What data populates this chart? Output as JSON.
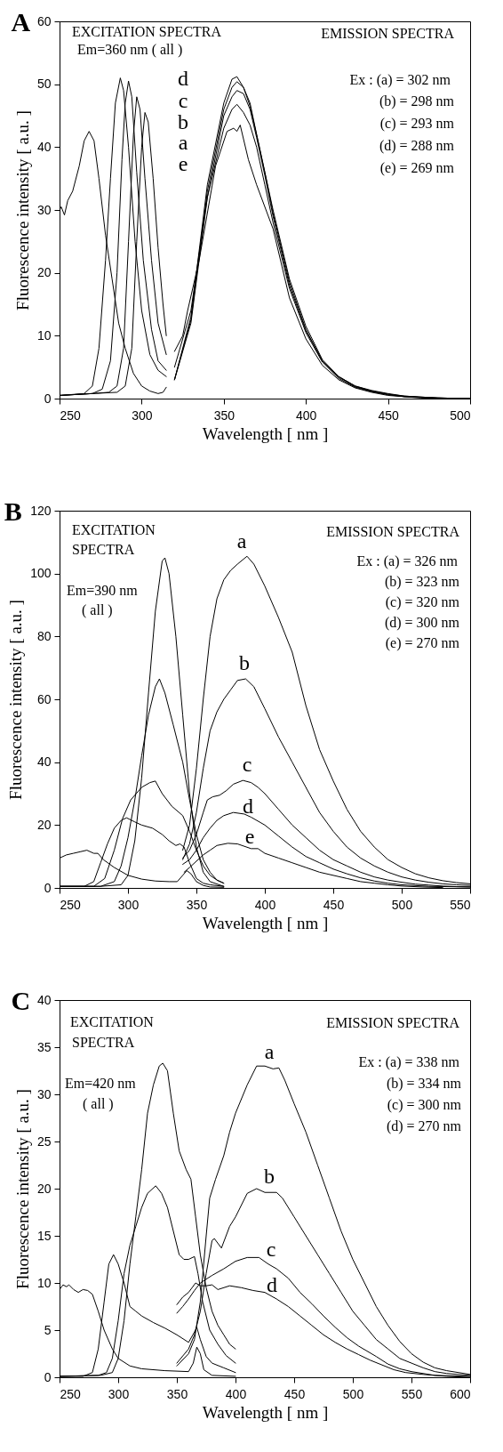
{
  "chart_data": [
    {
      "type": "line",
      "title": "A",
      "xlabel": "Wavelength [ nm ]",
      "ylabel": "Fluorescence intensity [ a.u. ]",
      "xlim": [
        250,
        500
      ],
      "ylim": [
        0,
        60
      ],
      "xticks": [
        250,
        300,
        350,
        400,
        450,
        500
      ],
      "yticks": [
        0,
        10,
        20,
        30,
        40,
        50,
        60
      ],
      "grid": false,
      "legend": false,
      "marker": "none",
      "line_style": "solid",
      "annotations": [
        "EXCITATION SPECTRA",
        "Em=360 nm ( all )",
        "EMISSION SPECTRA",
        "Ex : (a) = 302 nm",
        "(b) = 298 nm",
        "(c) = 293 nm",
        "(d) = 288 nm",
        "(e) = 269 nm",
        "d",
        "c",
        "b",
        "a",
        "e"
      ],
      "series": [
        {
          "color": "#000000",
          "x": [
            250,
            270,
            285,
            290,
            294,
            297,
            300,
            302,
            304,
            307,
            310,
            313,
            315
          ],
          "values": [
            0.5,
            0.8,
            1,
            2,
            8,
            25,
            40,
            45.5,
            44,
            35,
            24,
            15,
            10
          ]
        },
        {
          "color": "#000000",
          "x": [
            250,
            270,
            280,
            285,
            289,
            292,
            295,
            297,
            299,
            302,
            306,
            310,
            315
          ],
          "values": [
            0.5,
            0.8,
            1,
            2,
            8,
            25,
            42,
            48,
            46,
            35,
            22,
            12,
            7
          ]
        },
        {
          "color": "#000000",
          "x": [
            250,
            270,
            276,
            281,
            285,
            288,
            290,
            292,
            294,
            297,
            301,
            306,
            310,
            315
          ],
          "values": [
            0.5,
            0.8,
            1.5,
            6,
            20,
            38,
            47,
            50.5,
            48,
            36,
            22,
            11,
            6,
            4.5
          ]
        },
        {
          "color": "#000000",
          "x": [
            250,
            265,
            270,
            274,
            278,
            281,
            284,
            287,
            289,
            292,
            296,
            300,
            305,
            310,
            315
          ],
          "values": [
            0.5,
            0.8,
            2,
            8,
            22,
            35,
            47,
            51,
            49,
            40,
            25,
            14,
            7,
            4.5,
            3.5
          ]
        },
        {
          "color": "#000000",
          "x": [
            250,
            251,
            253,
            255,
            258,
            262,
            265,
            268,
            271,
            274,
            278,
            282,
            286,
            290,
            295,
            300,
            305,
            310,
            313,
            315
          ],
          "values": [
            30,
            30.5,
            29.2,
            31.5,
            33,
            37,
            41,
            42.5,
            41,
            35,
            26,
            19,
            12,
            8,
            4,
            2,
            1.2,
            0.8,
            1,
            1.8
          ]
        },
        {
          "color": "#000000",
          "x": [
            320,
            330,
            340,
            350,
            355,
            358,
            362,
            366,
            370,
            375,
            380,
            390,
            400,
            410,
            420,
            430,
            440,
            450,
            460,
            480,
            500
          ],
          "values": [
            3,
            13,
            34,
            47,
            50.8,
            51.2,
            49.5,
            46.5,
            42,
            36,
            30,
            19,
            11.5,
            6.2,
            3.5,
            2,
            1.3,
            0.8,
            0.4,
            0.1,
            0
          ]
        },
        {
          "color": "#000000",
          "x": [
            320,
            330,
            340,
            350,
            355,
            358,
            362,
            366,
            370,
            375,
            380,
            390,
            400,
            410,
            420,
            430,
            440,
            450,
            460,
            480,
            500
          ],
          "values": [
            3,
            12.5,
            33,
            46,
            49.5,
            50.4,
            49.5,
            47,
            42,
            36,
            29.5,
            18.5,
            11,
            6,
            3.5,
            2,
            1.2,
            0.7,
            0.4,
            0.1,
            0
          ]
        },
        {
          "color": "#000000",
          "x": [
            320,
            330,
            340,
            350,
            355,
            358,
            362,
            366,
            370,
            375,
            380,
            390,
            400,
            410,
            420,
            430,
            440,
            450,
            460,
            480,
            500
          ],
          "values": [
            3,
            12,
            32,
            45,
            48,
            49,
            48.5,
            46,
            41.5,
            35.5,
            29,
            18,
            10.8,
            6,
            3.4,
            1.9,
            1.2,
            0.7,
            0.3,
            0.1,
            0
          ]
        },
        {
          "color": "#000000",
          "x": [
            320,
            330,
            340,
            350,
            355,
            358,
            362,
            366,
            370,
            375,
            380,
            390,
            400,
            410,
            420,
            430,
            440,
            450,
            460,
            480,
            500
          ],
          "values": [
            5,
            14,
            32,
            43,
            46,
            46.8,
            45.5,
            43.5,
            40,
            34,
            28,
            17.5,
            10.5,
            5.8,
            3.2,
            1.8,
            1.1,
            0.6,
            0.3,
            0.1,
            0
          ]
        },
        {
          "color": "#000000",
          "x": [
            320,
            325,
            328,
            335,
            345,
            352,
            356,
            358,
            360,
            365,
            370,
            380,
            390,
            400,
            410,
            420,
            430,
            440,
            450,
            470,
            500
          ],
          "values": [
            7.5,
            10,
            14,
            22,
            37,
            42.5,
            43,
            42.5,
            43.5,
            38,
            34,
            27,
            16,
            9.5,
            5.3,
            3,
            1.7,
            1,
            0.5,
            0.1,
            0
          ]
        }
      ]
    },
    {
      "type": "line",
      "title": "B",
      "xlabel": "Wavelength [ nm ]",
      "ylabel": "Fluorescence intensity [ a.u. ]",
      "xlim": [
        250,
        550
      ],
      "ylim": [
        0,
        120
      ],
      "xticks": [
        250,
        300,
        350,
        400,
        450,
        500,
        550
      ],
      "yticks": [
        0,
        20,
        40,
        60,
        80,
        100,
        120
      ],
      "grid": false,
      "legend": false,
      "marker": "none",
      "line_style": "solid",
      "annotations": [
        "EXCITATION",
        "SPECTRA",
        "Em=390 nm",
        "( all )",
        "EMISSION SPECTRA",
        "Ex : (a) = 326 nm",
        "(b) = 323 nm",
        "(c) = 320 nm",
        "(d) = 300 nm",
        "(e) = 270 nm",
        "a",
        "b",
        "c",
        "d",
        "e"
      ],
      "series": [
        {
          "color": "#000000",
          "x": [
            250,
            280,
            295,
            300,
            305,
            310,
            315,
            320,
            325,
            327,
            330,
            335,
            340,
            345,
            350,
            355,
            360,
            370
          ],
          "values": [
            0.5,
            0.5,
            1,
            4,
            15,
            35,
            62,
            88,
            104,
            105,
            100,
            80,
            55,
            30,
            13,
            5,
            2,
            0.5
          ]
        },
        {
          "color": "#000000",
          "x": [
            250,
            280,
            290,
            295,
            300,
            305,
            310,
            315,
            320,
            323,
            327,
            333,
            340,
            345,
            350,
            355,
            360,
            365,
            370
          ],
          "values": [
            0.5,
            0.5,
            2,
            7,
            16,
            28,
            42,
            55,
            64,
            66.5,
            62,
            52,
            40,
            28,
            17,
            9,
            5,
            2.5,
            1.5
          ]
        },
        {
          "color": "#000000",
          "x": [
            250,
            275,
            283,
            290,
            296,
            302,
            310,
            316,
            320,
            325,
            332,
            340,
            345,
            350,
            355,
            360,
            365,
            370
          ],
          "values": [
            0.5,
            0.5,
            3,
            12,
            22,
            28,
            32,
            33.5,
            34,
            30,
            26,
            23,
            18,
            12,
            7,
            4,
            2.5,
            1.5
          ]
        },
        {
          "color": "#000000",
          "x": [
            250,
            268,
            275,
            280,
            285,
            290,
            295,
            299,
            305,
            310,
            318,
            325,
            330,
            335,
            338,
            341,
            345,
            350,
            355,
            360,
            370
          ],
          "values": [
            0.5,
            0.5,
            2,
            8,
            14,
            19,
            21.5,
            22.3,
            21,
            20,
            19,
            17,
            15,
            13.5,
            14,
            13,
            8,
            3,
            1.5,
            1,
            0.5
          ]
        },
        {
          "color": "#000000",
          "x": [
            250,
            255,
            260,
            265,
            270,
            275,
            278,
            282,
            290,
            300,
            310,
            320,
            330,
            336,
            340,
            343,
            346,
            350,
            355,
            360,
            370
          ],
          "values": [
            9.5,
            10.5,
            11,
            11.5,
            12,
            11,
            11,
            9,
            6.5,
            4,
            2.8,
            2.2,
            2,
            2,
            4,
            5.5,
            4.5,
            2,
            0.8,
            0.3,
            0.2
          ]
        },
        {
          "color": "#000000",
          "x": [
            340,
            345,
            350,
            355,
            360,
            365,
            370,
            375,
            380,
            387,
            392,
            400,
            410,
            420,
            430,
            440,
            450,
            460,
            470,
            480,
            490,
            500,
            510,
            520,
            530,
            540,
            550
          ],
          "values": [
            12,
            20,
            38,
            60,
            80,
            92,
            98,
            101,
            103,
            105.5,
            103,
            96,
            86,
            75,
            58,
            44,
            34,
            25,
            18,
            13,
            9,
            6.5,
            4.5,
            3.2,
            2.3,
            1.7,
            1.3
          ]
        },
        {
          "color": "#000000",
          "x": [
            340,
            345,
            350,
            355,
            360,
            365,
            370,
            375,
            380,
            386,
            392,
            400,
            410,
            420,
            430,
            440,
            450,
            460,
            470,
            480,
            490,
            500,
            510,
            520,
            530,
            540,
            550
          ],
          "values": [
            9,
            14,
            24,
            38,
            50,
            56,
            60,
            63,
            66,
            66.5,
            64,
            57,
            48,
            40,
            32,
            24,
            18,
            13,
            9.5,
            7,
            5,
            3.5,
            2.5,
            1.8,
            1.3,
            1,
            0.8
          ]
        },
        {
          "color": "#000000",
          "x": [
            340,
            345,
            350,
            355,
            358,
            362,
            367,
            372,
            377,
            384,
            390,
            395,
            400,
            410,
            420,
            430,
            440,
            450,
            460,
            470,
            480,
            490,
            500,
            510,
            520,
            530,
            540,
            550
          ],
          "values": [
            9.5,
            12,
            17,
            24,
            28,
            29,
            29.5,
            31,
            33,
            34.2,
            33.5,
            32,
            30,
            25,
            20,
            16,
            12,
            9,
            7,
            5,
            3.5,
            2.5,
            1.8,
            1.2,
            0.9,
            0.6,
            0.4,
            0.3
          ]
        },
        {
          "color": "#000000",
          "x": [
            340,
            345,
            350,
            355,
            360,
            365,
            370,
            377,
            385,
            390,
            400,
            410,
            420,
            430,
            440,
            450,
            460,
            470,
            480,
            490,
            500,
            520,
            550
          ],
          "values": [
            7.5,
            9,
            12,
            16,
            19,
            21.5,
            23,
            24,
            23.5,
            22.5,
            20,
            16.5,
            13,
            10,
            8,
            6,
            4.5,
            3.2,
            2.2,
            1.5,
            1,
            0.5,
            0.3
          ]
        },
        {
          "color": "#000000",
          "x": [
            341,
            345,
            350,
            355,
            360,
            365,
            373,
            380,
            390,
            395,
            400,
            410,
            420,
            430,
            440,
            450,
            460,
            470,
            480,
            490,
            500,
            515,
            530
          ],
          "values": [
            5,
            6.5,
            8.5,
            10.5,
            12,
            13.5,
            14.2,
            14,
            12.5,
            12.5,
            11,
            9.5,
            8,
            6.5,
            5,
            4,
            3,
            2,
            1.5,
            1,
            0.6,
            0.3,
            0.1
          ]
        }
      ]
    },
    {
      "type": "line",
      "title": "C",
      "xlabel": "Wavelength [ nm ]",
      "ylabel": "Fluorescence intensity [ a.u. ]",
      "xlim": [
        250,
        600
      ],
      "ylim": [
        0,
        40
      ],
      "xticks": [
        250,
        300,
        350,
        400,
        450,
        500,
        550,
        600
      ],
      "yticks": [
        0,
        5,
        10,
        15,
        20,
        25,
        30,
        35,
        40
      ],
      "grid": false,
      "legend": false,
      "marker": "none",
      "line_style": "solid",
      "annotations": [
        "EXCITATION",
        "SPECTRA",
        "Em=420 nm",
        "( all )",
        "EMISSION SPECTRA",
        "Ex : (a) = 338 nm",
        "(b) = 334 nm",
        "(c) = 300 nm",
        "(d) = 270 nm",
        "a",
        "b",
        "c",
        "d"
      ],
      "series": [
        {
          "color": "#000000",
          "x": [
            250,
            285,
            295,
            300,
            305,
            310,
            315,
            320,
            325,
            330,
            335,
            338,
            342,
            347,
            352,
            358,
            362,
            366,
            370,
            375,
            380,
            385,
            390,
            395,
            400
          ],
          "values": [
            0.1,
            0.2,
            0.5,
            2,
            6,
            12,
            17,
            22,
            28,
            31,
            33,
            33.3,
            32.5,
            28,
            24,
            22,
            21,
            17,
            13,
            9.5,
            7,
            5.5,
            4.5,
            3.5,
            3
          ]
        },
        {
          "color": "#000000",
          "x": [
            250,
            283,
            290,
            295,
            300,
            305,
            310,
            315,
            320,
            325,
            332,
            337,
            342,
            348,
            352,
            356,
            360,
            365,
            368,
            372,
            378,
            385,
            392,
            400
          ],
          "values": [
            0.1,
            0.2,
            0.5,
            2,
            6,
            11,
            14,
            16,
            18,
            19.5,
            20.3,
            19.5,
            18,
            15,
            13,
            12.5,
            12.5,
            12.8,
            11,
            8,
            5,
            3.5,
            2.3,
            1.5
          ]
        },
        {
          "color": "#000000",
          "x": [
            250,
            270,
            278,
            283,
            288,
            292,
            296,
            300,
            305,
            310,
            315,
            320,
            330,
            340,
            350,
            360,
            365,
            367,
            370,
            375,
            380,
            390,
            400
          ],
          "values": [
            0.1,
            0.1,
            0.5,
            3,
            8,
            12,
            13,
            12,
            10,
            7.5,
            7,
            6.5,
            5.8,
            5.2,
            4.5,
            3.7,
            4.8,
            5.3,
            4,
            2.2,
            1.5,
            1,
            0.5
          ]
        },
        {
          "color": "#000000",
          "x": [
            250,
            253,
            256,
            258,
            262,
            266,
            270,
            274,
            278,
            283,
            288,
            295,
            300,
            310,
            320,
            340,
            360,
            364,
            367,
            370,
            373,
            380,
            400
          ],
          "values": [
            9.3,
            9.8,
            9.6,
            9.8,
            9.3,
            9,
            9.3,
            9.2,
            8.8,
            7,
            5,
            3,
            2,
            1.2,
            0.9,
            0.7,
            0.6,
            1.5,
            3.2,
            2.5,
            0.8,
            0.2,
            0.1
          ]
        },
        {
          "color": "#000000",
          "x": [
            350,
            360,
            365,
            370,
            375,
            378,
            383,
            390,
            395,
            400,
            410,
            418,
            425,
            432,
            437,
            442,
            450,
            460,
            470,
            480,
            490,
            500,
            510,
            520,
            530,
            540,
            550,
            560,
            570,
            580,
            600
          ],
          "values": [
            1.2,
            2.5,
            4,
            8,
            15,
            19,
            21,
            23.5,
            26,
            28,
            31,
            33,
            33,
            32.7,
            32.8,
            31.5,
            29,
            26,
            22.5,
            19,
            15.5,
            12.5,
            10,
            7.5,
            5.5,
            3.8,
            2.5,
            1.6,
            1,
            0.7,
            0.3
          ]
        },
        {
          "color": "#000000",
          "x": [
            350,
            360,
            365,
            370,
            375,
            380,
            382,
            388,
            395,
            400,
            410,
            418,
            425,
            435,
            440,
            450,
            460,
            470,
            480,
            490,
            500,
            510,
            520,
            530,
            540,
            550,
            560,
            570,
            580,
            600
          ],
          "values": [
            1.5,
            3,
            4.5,
            7,
            11,
            14.5,
            14.7,
            13.7,
            16,
            17,
            19.5,
            20,
            19.6,
            19.6,
            19,
            17,
            15,
            13,
            11,
            9,
            7,
            5.5,
            4,
            3,
            2,
            1.5,
            1,
            0.6,
            0.4,
            0.2
          ]
        },
        {
          "color": "#000000",
          "x": [
            350,
            355,
            360,
            365,
            370,
            380,
            390,
            400,
            410,
            420,
            428,
            435,
            445,
            455,
            465,
            475,
            485,
            495,
            505,
            520,
            530,
            540,
            550,
            570,
            600
          ],
          "values": [
            6.8,
            7.5,
            8.3,
            9.2,
            10,
            10.8,
            11.5,
            12.3,
            12.7,
            12.7,
            12,
            11.5,
            10.5,
            9,
            7.8,
            6.5,
            5.3,
            4.2,
            3.3,
            2.2,
            1.4,
            0.9,
            0.6,
            0.2,
            0.1
          ]
        },
        {
          "color": "#000000",
          "x": [
            350,
            355,
            360,
            366,
            370,
            375,
            380,
            385,
            395,
            405,
            415,
            425,
            435,
            445,
            455,
            465,
            475,
            485,
            495,
            505,
            515,
            525,
            535,
            545,
            560,
            580,
            600
          ],
          "values": [
            7.7,
            8.5,
            9,
            10,
            9.7,
            9.7,
            9.8,
            9.3,
            9.7,
            9.5,
            9.2,
            9,
            8.3,
            7.5,
            6.5,
            5.5,
            4.5,
            3.7,
            3,
            2.4,
            1.8,
            1.3,
            0.8,
            0.5,
            0.3,
            0.1,
            0
          ]
        }
      ]
    }
  ]
}
